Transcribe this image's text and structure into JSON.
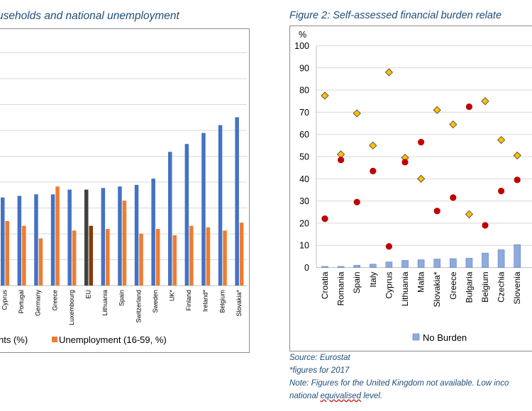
{
  "left_figure": {
    "title": "useholds and national unemployment",
    "legend": [
      {
        "label": "nts (%)",
        "color": "#4472c4"
      },
      {
        "label": "Unemployment (16-59, %)",
        "color": "#ed7d31"
      }
    ]
  },
  "right_figure": {
    "title": "Figure 2: Self-assessed financial burden relate",
    "y_unit": "%",
    "legend": [
      {
        "label": "No Burden",
        "color": "#8faadc"
      }
    ]
  },
  "notes": {
    "source": "Source: Eurostat",
    "asterisk": "*figures for 2017",
    "note_line1": "Note: Figures for the United Kingdom not available. Low inco",
    "note_line2_pre": "national ",
    "note_line2_wavy": "equivalised",
    "note_line2_post": " level."
  },
  "colors": {
    "blue": "#4472c4",
    "orange": "#ed7d31",
    "eu_dark": "#404040",
    "eu_brown": "#843c0c",
    "light_blue": "#8faadc",
    "diamond": "#ffc000",
    "dot": "#c00000"
  },
  "chart_data": [
    {
      "type": "bar",
      "categories": [
        "Cyprus",
        "Portugal",
        "Germany",
        "Greece",
        "Luxembourg",
        "EU",
        "Lithuania",
        "Spain",
        "Switzerland",
        "Sweden",
        "UK*",
        "Finland",
        "Ireland*",
        "Belgium",
        "Slovakia*"
      ],
      "series": [
        {
          "name": "nts (%)",
          "values": [
            56,
            57,
            58,
            58,
            61,
            61,
            62,
            63,
            64,
            68,
            85,
            90,
            97,
            102,
            107
          ]
        },
        {
          "name": "Unemployment (16-59, %)",
          "values": [
            41,
            38,
            30,
            63,
            35,
            38,
            36,
            54,
            33,
            36,
            32,
            38,
            37,
            35,
            40
          ]
        }
      ]
    },
    {
      "type": "scatter",
      "categories": [
        "Croatia",
        "Romania",
        "Spain",
        "Italy",
        "Cyprus",
        "Lithuania",
        "Malta",
        "Slovakia*",
        "Greece",
        "Bulgaria",
        "Belgium",
        "Czechia",
        "Slovenia"
      ],
      "ylim": [
        0,
        100
      ],
      "y_ticks": [
        0,
        10,
        20,
        30,
        40,
        50,
        60,
        70,
        80,
        90,
        100
      ],
      "ylabel": "%",
      "series": [
        {
          "name": "No Burden",
          "kind": "bar",
          "values": [
            0.5,
            0.5,
            1,
            1.5,
            2.5,
            3.2,
            3.5,
            3.8,
            4,
            4.2,
            6.5,
            8,
            10.3
          ]
        },
        {
          "kind": "diamond",
          "values": [
            77.5,
            51,
            69.5,
            55,
            88,
            49.5,
            40,
            71,
            64.5,
            24,
            75,
            57.5,
            50.5
          ]
        },
        {
          "kind": "dot",
          "values": [
            22,
            48.5,
            29.5,
            43.5,
            9.5,
            47.5,
            56.5,
            25.5,
            31.5,
            72.5,
            19,
            34.5,
            39.5
          ]
        }
      ]
    }
  ]
}
